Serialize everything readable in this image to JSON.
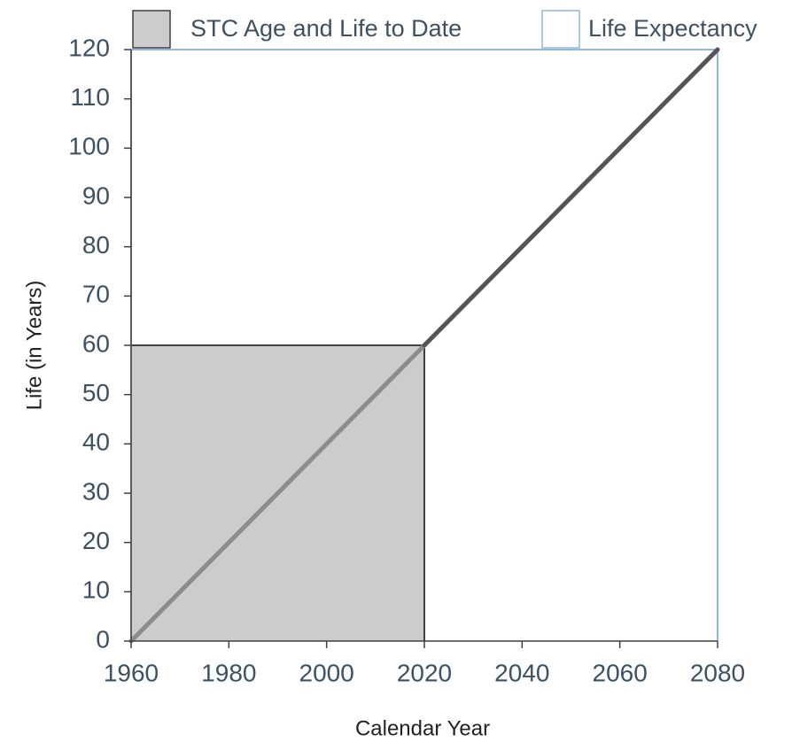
{
  "chart_data": {
    "type": "area",
    "x_label": "Calendar Year",
    "y_label": "Life (in Years)",
    "xlim": [
      1960,
      2080
    ],
    "ylim": [
      0,
      120
    ],
    "xticks": [
      1960,
      1980,
      2000,
      2020,
      2040,
      2060,
      2080
    ],
    "yticks": [
      0,
      10,
      20,
      30,
      40,
      50,
      60,
      70,
      80,
      90,
      100,
      110,
      120
    ],
    "series": [
      {
        "name": "STC Age and Life to Date",
        "color": "#cccccc",
        "edge": "#404040",
        "x": [
          1960,
          2020
        ],
        "values": [
          60,
          60
        ]
      },
      {
        "name": "Life Expectancy",
        "color": "none",
        "edge": "#8fb8e0",
        "x": [
          1960,
          2080
        ],
        "values": [
          120,
          120
        ]
      }
    ],
    "lines": [
      {
        "color": "#8c8c8c",
        "x": [
          1960,
          2020
        ],
        "values": [
          0,
          60
        ]
      },
      {
        "color": "#555555",
        "x": [
          2020,
          2080
        ],
        "values": [
          60,
          120
        ]
      }
    ]
  }
}
